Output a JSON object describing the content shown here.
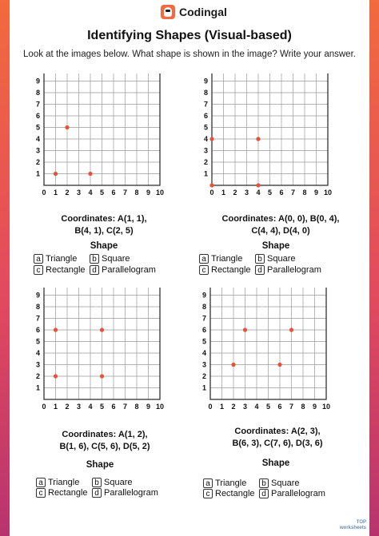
{
  "brand": "Codingal",
  "title": "Identifying Shapes (Visual-based)",
  "instruction": "Look at the images below. What shape is shown in the image? Write your answer.",
  "shape_heading": "Shape",
  "options": [
    {
      "letter": "a",
      "label": "Triangle"
    },
    {
      "letter": "b",
      "label": "Square"
    },
    {
      "letter": "c",
      "label": "Rectangle"
    },
    {
      "letter": "d",
      "label": "Parallelogram"
    }
  ],
  "problems": [
    {
      "coords_line1": "Coordinates: A(1, 1),",
      "coords_line2": "B(4, 1), C(2, 5)",
      "points": [
        [
          1,
          1
        ],
        [
          4,
          1
        ],
        [
          2,
          5
        ]
      ]
    },
    {
      "coords_line1": "Coordinates: A(0, 0), B(0, 4),",
      "coords_line2": "C(4, 4), D(4, 0)",
      "points": [
        [
          0,
          0
        ],
        [
          0,
          4
        ],
        [
          4,
          4
        ],
        [
          4,
          0
        ]
      ]
    },
    {
      "coords_line1": "Coordinates: A(1, 2),",
      "coords_line2": "B(1, 6), C(5, 6), D(5, 2)",
      "points": [
        [
          1,
          2
        ],
        [
          1,
          6
        ],
        [
          5,
          6
        ],
        [
          5,
          2
        ]
      ]
    },
    {
      "coords_line1": "Coordinates: A(2, 3),",
      "coords_line2": "B(6, 3), C(7, 6), D(3, 6)",
      "points": [
        [
          2,
          3
        ],
        [
          6,
          3
        ],
        [
          7,
          6
        ],
        [
          3,
          6
        ]
      ]
    }
  ],
  "axis_ticks": [
    "0",
    "1",
    "2",
    "3",
    "4",
    "5",
    "6",
    "7",
    "8",
    "9",
    "10"
  ],
  "colors": {
    "point": "#e8503a",
    "grid": "#9a9a9a",
    "frame": "#222222"
  },
  "footer": {
    "line1": "TOP",
    "line2": "worksheets"
  }
}
